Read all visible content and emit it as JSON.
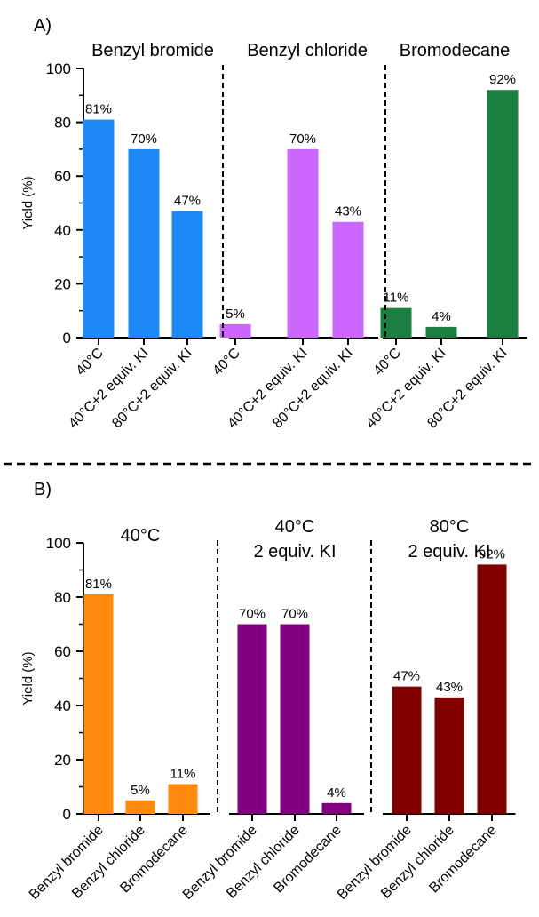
{
  "chart_data": [
    {
      "type": "bar",
      "panel_label": "A)",
      "ylabel": "Yield (%)",
      "ylim": [
        0,
        100
      ],
      "yticks": [
        0,
        20,
        40,
        60,
        80,
        100
      ],
      "grid": false,
      "groups": [
        {
          "title": [
            "Benzyl bromide"
          ],
          "color": "#1e88f5",
          "categories": [
            "40°C",
            "40°C+2 equiv. KI",
            "80°C+2 equiv. KI"
          ],
          "values": [
            81,
            70,
            47
          ],
          "value_labels": [
            "81%",
            "70%",
            "47%"
          ]
        },
        {
          "title": [
            "Benzyl chloride"
          ],
          "color": "#cc66ff",
          "categories": [
            "40°C",
            "40°C+2 equiv. KI",
            "80°C+2 equiv. KI"
          ],
          "values": [
            5,
            70,
            43
          ],
          "value_labels": [
            "5%",
            "70%",
            "43%"
          ]
        },
        {
          "title": [
            "Bromodecane"
          ],
          "color": "#1a7f40",
          "categories": [
            "40°C",
            "40°C+2 equiv. KI",
            "80°C+2 equiv. KI"
          ],
          "values": [
            11,
            4,
            92
          ],
          "value_labels": [
            "11%",
            "4%",
            "92%"
          ]
        }
      ]
    },
    {
      "type": "bar",
      "panel_label": "B)",
      "ylabel": "Yield (%)",
      "ylim": [
        0,
        100
      ],
      "yticks": [
        0,
        20,
        40,
        60,
        80,
        100
      ],
      "grid": false,
      "groups": [
        {
          "title": [
            "40°C"
          ],
          "color": "#ff8a0e",
          "categories": [
            "Benzyl bromide",
            "Benzyl chloride",
            "Bromodecane"
          ],
          "values": [
            81,
            5,
            11
          ],
          "value_labels": [
            "81%",
            "5%",
            "11%"
          ]
        },
        {
          "title": [
            "40°C",
            "2 equiv. KI"
          ],
          "color": "#800080",
          "categories": [
            "Benzyl bromide",
            "Benzyl chloride",
            "Bromodecane"
          ],
          "values": [
            70,
            70,
            4
          ],
          "value_labels": [
            "70%",
            "70%",
            "4%"
          ]
        },
        {
          "title": [
            "80°C",
            "2 equiv. KI"
          ],
          "color": "#800000",
          "categories": [
            "Benzyl bromide",
            "Benzyl chloride",
            "Bromodecane"
          ],
          "values": [
            47,
            43,
            92
          ],
          "value_labels": [
            "47%",
            "43%",
            "92%"
          ]
        }
      ]
    }
  ]
}
